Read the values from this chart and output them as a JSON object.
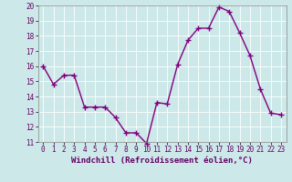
{
  "x": [
    0,
    1,
    2,
    3,
    4,
    5,
    6,
    7,
    8,
    9,
    10,
    11,
    12,
    13,
    14,
    15,
    16,
    17,
    18,
    19,
    20,
    21,
    22,
    23
  ],
  "y": [
    16,
    14.8,
    15.4,
    15.4,
    13.3,
    13.3,
    13.3,
    12.6,
    11.6,
    11.6,
    10.9,
    13.6,
    13.5,
    16.1,
    17.7,
    18.5,
    18.5,
    19.9,
    19.6,
    18.2,
    16.7,
    14.5,
    12.9,
    12.8
  ],
  "line_color": "#800080",
  "marker": "+",
  "marker_size": 4,
  "marker_linewidth": 1.0,
  "bg_color": "#cce8e8",
  "grid_color": "#b0d8d8",
  "xlabel": "Windchill (Refroidissement éolien,°C)",
  "ylim": [
    11,
    20
  ],
  "xlim": [
    -0.5,
    23.5
  ],
  "yticks": [
    11,
    12,
    13,
    14,
    15,
    16,
    17,
    18,
    19,
    20
  ],
  "xticks": [
    0,
    1,
    2,
    3,
    4,
    5,
    6,
    7,
    8,
    9,
    10,
    11,
    12,
    13,
    14,
    15,
    16,
    17,
    18,
    19,
    20,
    21,
    22,
    23
  ],
  "tick_fontsize": 5.5,
  "xlabel_fontsize": 6.5,
  "linewidth": 1.0
}
